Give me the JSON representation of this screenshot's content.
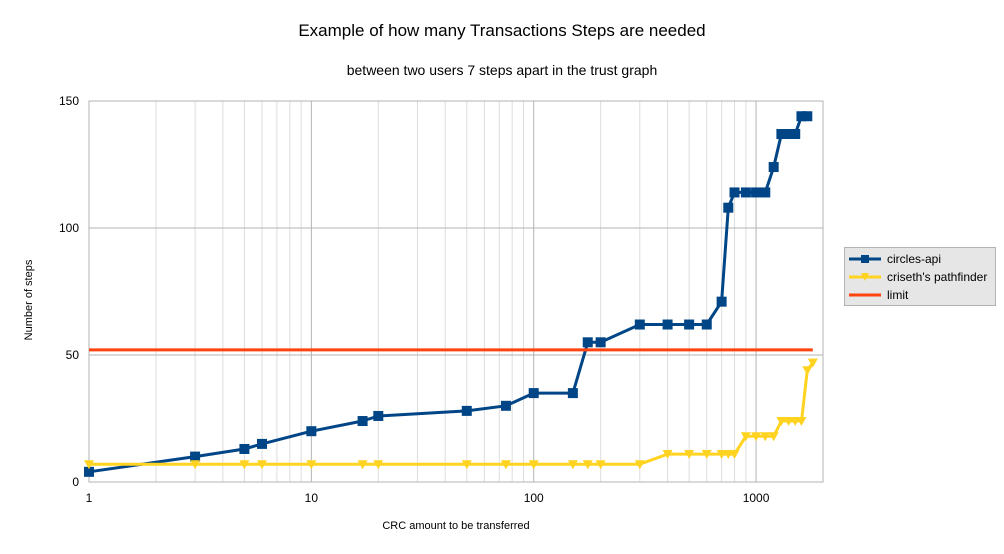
{
  "chart_data": {
    "type": "line",
    "title": "Example of how many Transactions Steps are needed",
    "subtitle": "between two users 7 steps apart in the trust graph",
    "xlabel": "CRC amount to be transferred",
    "ylabel": "Number of steps",
    "xscale": "log",
    "xlim": [
      1,
      2000
    ],
    "ylim": [
      0,
      150
    ],
    "xticks": [
      1,
      10,
      100,
      1000
    ],
    "yticks": [
      0,
      50,
      100,
      150
    ],
    "grid": true,
    "legend_position": "right",
    "series": [
      {
        "name": "circles-api",
        "color": "#004586",
        "marker": "square",
        "x": [
          1,
          3,
          5,
          6,
          10,
          17,
          20,
          50,
          75,
          100,
          150,
          175,
          200,
          300,
          400,
          500,
          600,
          700,
          750,
          800,
          900,
          1000,
          1100,
          1200,
          1300,
          1400,
          1500,
          1600,
          1700
        ],
        "y": [
          4,
          10,
          13,
          15,
          20,
          24,
          26,
          28,
          30,
          35,
          35,
          55,
          55,
          62,
          62,
          62,
          62,
          71,
          108,
          114,
          114,
          114,
          114,
          124,
          137,
          137,
          137,
          144,
          144
        ]
      },
      {
        "name": "criseth's pathfinder",
        "color": "#ffd320",
        "marker": "triangle-down",
        "x": [
          1,
          3,
          5,
          6,
          10,
          17,
          20,
          50,
          75,
          100,
          150,
          175,
          200,
          300,
          400,
          500,
          600,
          700,
          750,
          800,
          900,
          1000,
          1100,
          1200,
          1300,
          1400,
          1500,
          1600,
          1700,
          1800
        ],
        "y": [
          7,
          7,
          7,
          7,
          7,
          7,
          7,
          7,
          7,
          7,
          7,
          7,
          7,
          7,
          11,
          11,
          11,
          11,
          11,
          11,
          18,
          18,
          18,
          18,
          24,
          24,
          24,
          24,
          44,
          47
        ]
      },
      {
        "name": "limit",
        "color": "#ff420e",
        "marker": "none",
        "x": [
          1,
          1800
        ],
        "y": [
          52,
          52
        ]
      }
    ]
  }
}
